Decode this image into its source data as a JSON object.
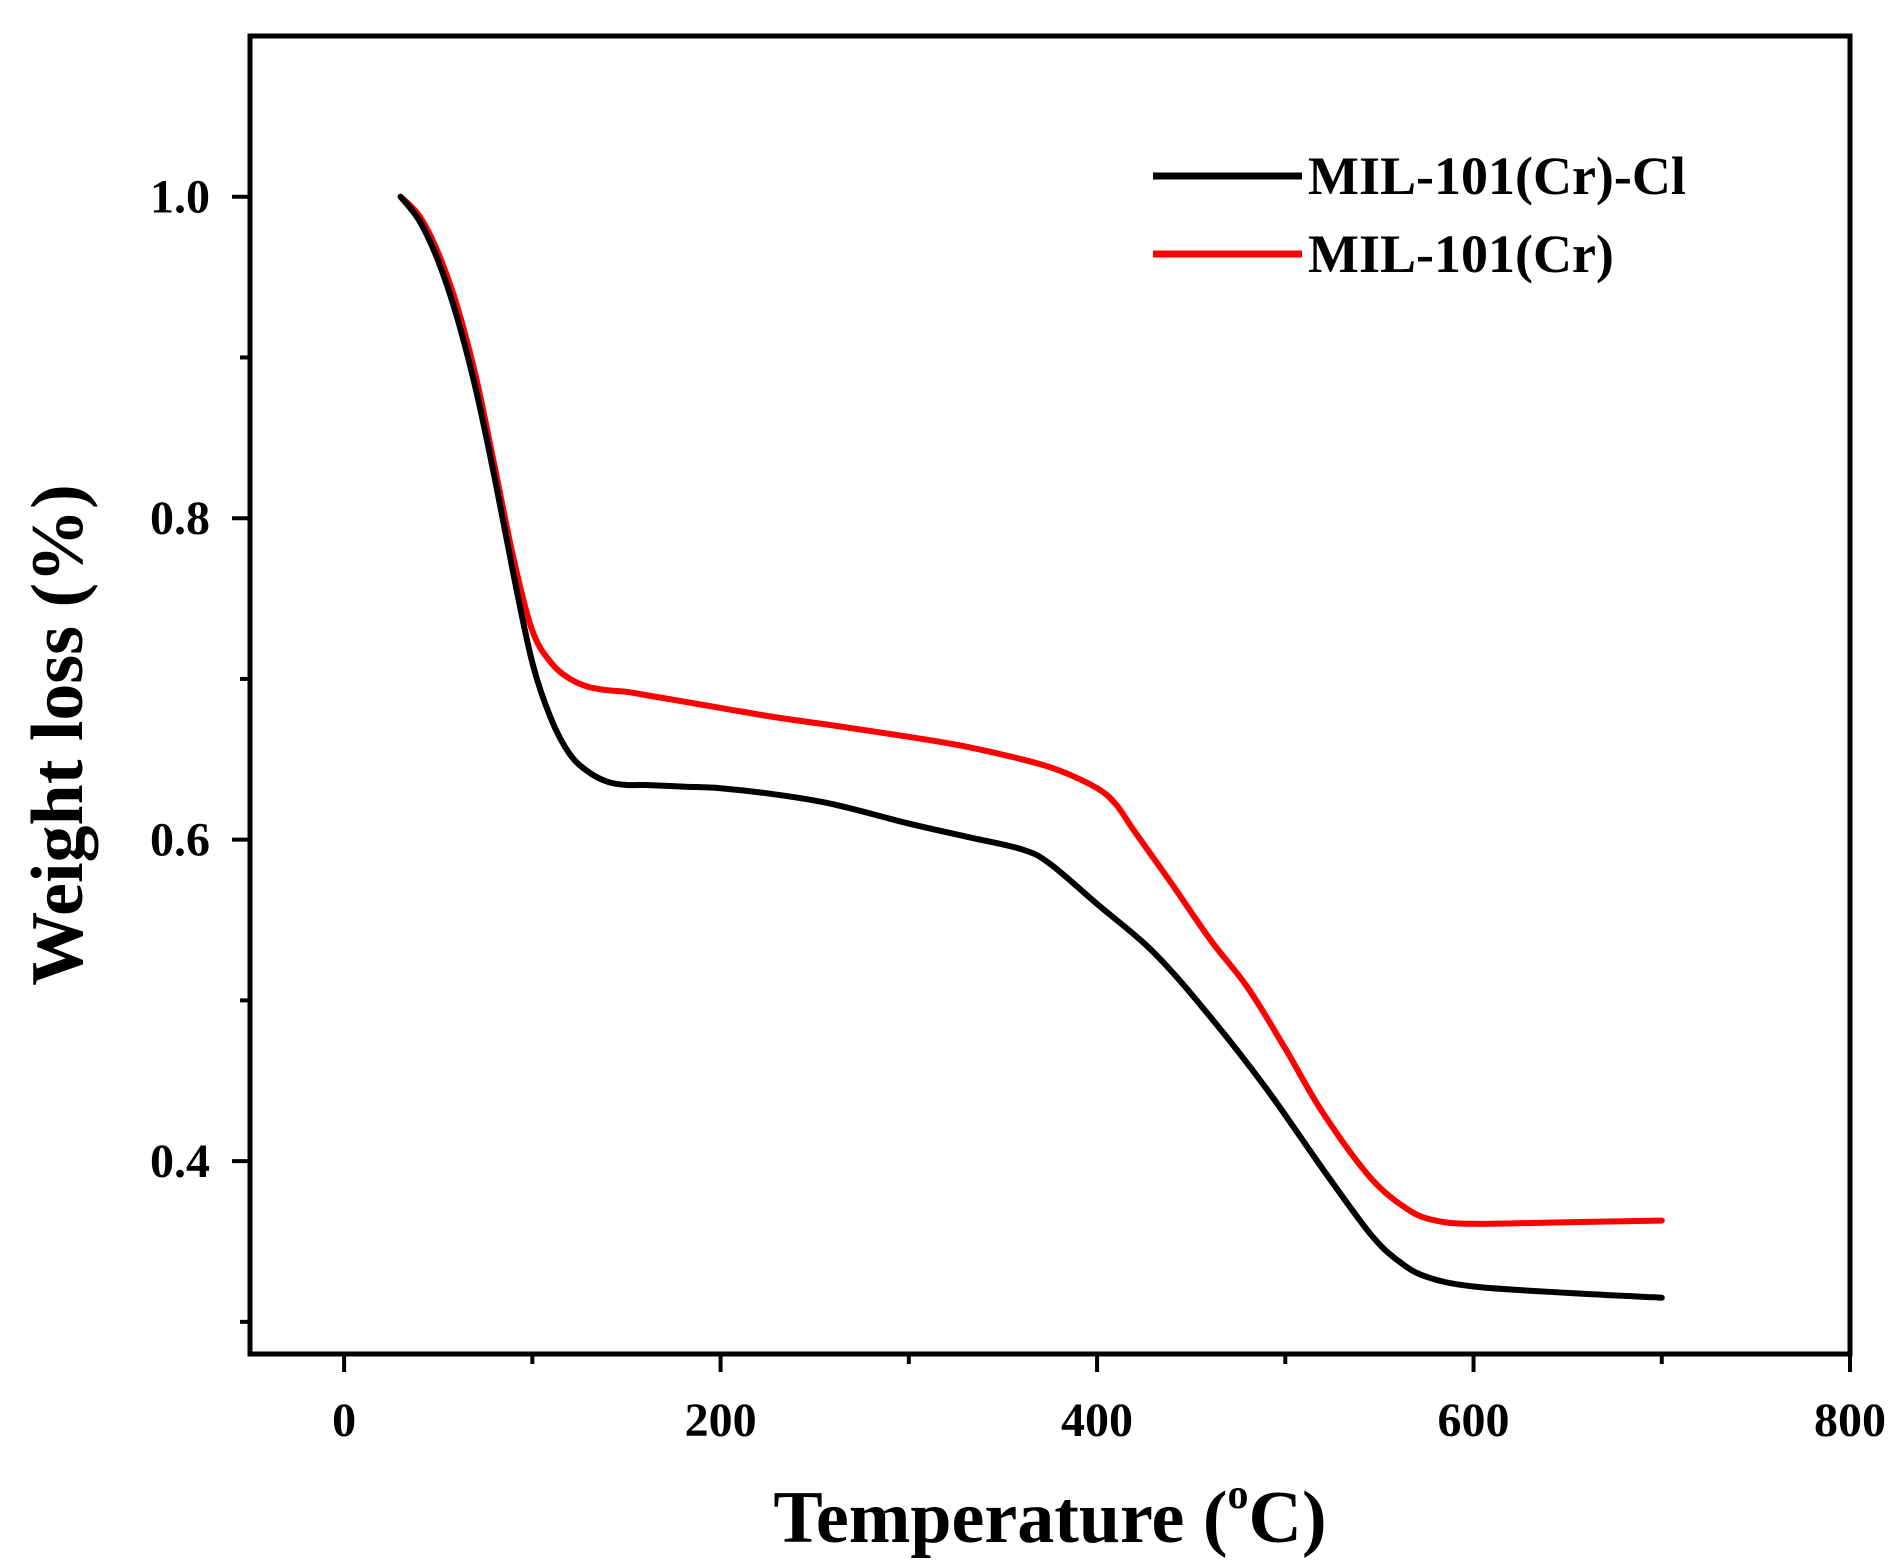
{
  "chart_data": {
    "type": "line",
    "xlabel_main": "Temperature (",
    "xlabel_sup": "o",
    "xlabel_tail": "C)",
    "ylabel": "Weight loss (%)",
    "xlim": [
      -50,
      800
    ],
    "ylim": [
      0.28,
      1.1
    ],
    "x_ticks": [
      0,
      200,
      400,
      600,
      800
    ],
    "x_tick_labels": [
      "0",
      "200",
      "400",
      "600",
      "800"
    ],
    "x_minor_ticks": [
      100,
      300,
      500,
      700
    ],
    "y_ticks": [
      0.4,
      0.6,
      0.8,
      1.0
    ],
    "y_tick_labels": [
      "0.4",
      "0.6",
      "0.8",
      "1.0"
    ],
    "y_minor_ticks": [
      0.3,
      0.5,
      0.7,
      0.9
    ],
    "legend_position": "top-right",
    "series": [
      {
        "name": "MIL-101(Cr)-Cl",
        "color": "#000000",
        "x": [
          30,
          40,
          50,
          60,
          70,
          80,
          90,
          100,
          110,
          120,
          130,
          140,
          150,
          160,
          180,
          200,
          230,
          260,
          300,
          330,
          360,
          375,
          400,
          430,
          460,
          490,
          520,
          545,
          560,
          575,
          600,
          650,
          700
        ],
        "y": [
          1.0,
          0.985,
          0.96,
          0.925,
          0.88,
          0.825,
          0.765,
          0.71,
          0.675,
          0.653,
          0.642,
          0.636,
          0.634,
          0.634,
          0.633,
          0.632,
          0.628,
          0.622,
          0.61,
          0.602,
          0.594,
          0.585,
          0.56,
          0.53,
          0.49,
          0.445,
          0.395,
          0.355,
          0.338,
          0.328,
          0.322,
          0.318,
          0.315
        ]
      },
      {
        "name": "MIL-101(Cr)",
        "color": "#ff0000",
        "x": [
          30,
          40,
          50,
          60,
          70,
          80,
          90,
          100,
          110,
          120,
          130,
          140,
          150,
          160,
          180,
          200,
          230,
          260,
          300,
          330,
          360,
          380,
          400,
          410,
          420,
          440,
          460,
          480,
          500,
          520,
          545,
          565,
          580,
          600,
          650,
          700
        ],
        "y": [
          1.0,
          0.988,
          0.965,
          0.932,
          0.888,
          0.832,
          0.775,
          0.73,
          0.71,
          0.7,
          0.695,
          0.693,
          0.692,
          0.69,
          0.686,
          0.682,
          0.676,
          0.671,
          0.664,
          0.658,
          0.65,
          0.643,
          0.632,
          0.622,
          0.605,
          0.572,
          0.538,
          0.508,
          0.47,
          0.43,
          0.39,
          0.37,
          0.363,
          0.361,
          0.362,
          0.363
        ]
      }
    ]
  }
}
